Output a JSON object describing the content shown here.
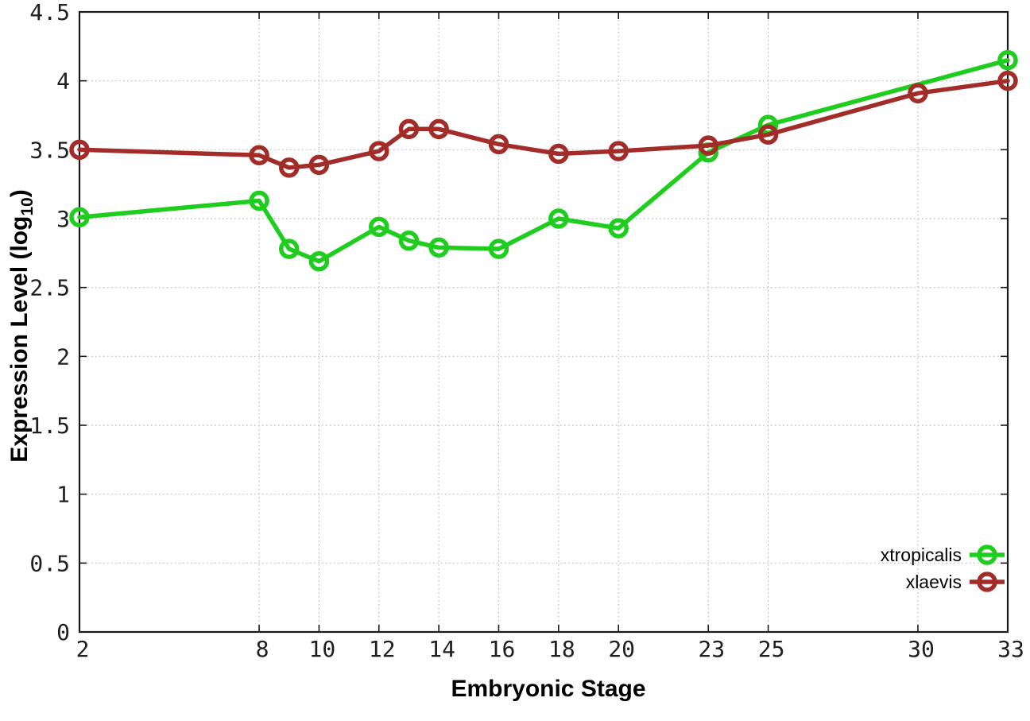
{
  "chart_data": {
    "type": "line",
    "title": "",
    "xlabel": "Embryonic Stage",
    "ylabel": "Expression Level (log10)",
    "ylabel_parts": {
      "pre": "Expression Level (log",
      "sub": "10",
      "post": ")"
    },
    "xlim": [
      2,
      33
    ],
    "ylim": [
      0,
      4.5
    ],
    "x_ticks": [
      2,
      8,
      10,
      12,
      14,
      16,
      18,
      20,
      23,
      25,
      30,
      33
    ],
    "x_tick_labels": [
      "2",
      "8",
      "10",
      "12",
      "14",
      "16",
      "18",
      "20",
      "23",
      "25",
      "30",
      "33"
    ],
    "y_ticks": [
      0,
      0.5,
      1,
      1.5,
      2,
      2.5,
      3,
      3.5,
      4,
      4.5
    ],
    "y_tick_labels": [
      "0",
      "0.5",
      "1",
      "1.5",
      "2",
      "2.5",
      "3",
      "3.5",
      "4",
      "4.5"
    ],
    "grid": true,
    "legend_position": "inside-bottom-right",
    "marker": "open-circle",
    "series": [
      {
        "name": "xtropicalis",
        "color": "#1ecd1e",
        "points": [
          [
            2,
            3.01
          ],
          [
            8,
            3.13
          ],
          [
            9,
            2.78
          ],
          [
            10,
            2.69
          ],
          [
            12,
            2.94
          ],
          [
            13,
            2.84
          ],
          [
            14,
            2.79
          ],
          [
            16,
            2.78
          ],
          [
            18,
            3.0
          ],
          [
            20,
            2.93
          ],
          [
            23,
            3.48
          ],
          [
            25,
            3.68
          ],
          [
            33,
            4.15
          ]
        ]
      },
      {
        "name": "xlaevis",
        "color": "#a12c28",
        "points": [
          [
            2,
            3.5
          ],
          [
            8,
            3.46
          ],
          [
            9,
            3.37
          ],
          [
            10,
            3.39
          ],
          [
            12,
            3.49
          ],
          [
            13,
            3.65
          ],
          [
            14,
            3.65
          ],
          [
            16,
            3.54
          ],
          [
            18,
            3.47
          ],
          [
            20,
            3.49
          ],
          [
            23,
            3.53
          ],
          [
            25,
            3.61
          ],
          [
            30,
            3.91
          ],
          [
            33,
            4.0
          ]
        ]
      }
    ],
    "styles": {
      "grid_color": "#bcbcbc",
      "axis_color": "#1a1a1a",
      "tick_label_color": "#1f1f1f",
      "background": "#ffffff"
    }
  }
}
